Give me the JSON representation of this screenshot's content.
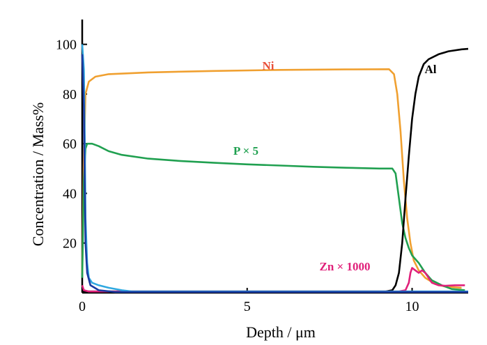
{
  "chart_data": {
    "type": "line",
    "title": "",
    "xlabel": "Depth /  μm",
    "ylabel": "Concentration / Mass%",
    "xlim": [
      0,
      11.7
    ],
    "ylim": [
      0,
      110
    ],
    "x_ticks": [
      0,
      5,
      10
    ],
    "y_ticks": [
      20,
      40,
      60,
      80,
      100
    ],
    "grid": false,
    "series": [
      {
        "name": "Ni",
        "color": "#f0a030",
        "points": [
          [
            0,
            8
          ],
          [
            0.05,
            55
          ],
          [
            0.1,
            80
          ],
          [
            0.2,
            85
          ],
          [
            0.4,
            87
          ],
          [
            0.8,
            88
          ],
          [
            2,
            88.7
          ],
          [
            4,
            89.3
          ],
          [
            6,
            89.7
          ],
          [
            8,
            89.9
          ],
          [
            9.3,
            90
          ],
          [
            9.45,
            88
          ],
          [
            9.55,
            80
          ],
          [
            9.65,
            65
          ],
          [
            9.75,
            45
          ],
          [
            9.85,
            30
          ],
          [
            9.95,
            20
          ],
          [
            10.05,
            13
          ],
          [
            10.2,
            9
          ],
          [
            10.4,
            6
          ],
          [
            10.7,
            3.5
          ],
          [
            11,
            2.5
          ],
          [
            11.5,
            2
          ]
        ]
      },
      {
        "name": "P × 5",
        "color": "#20a050",
        "points": [
          [
            0,
            6
          ],
          [
            0.05,
            45
          ],
          [
            0.1,
            58
          ],
          [
            0.15,
            60
          ],
          [
            0.3,
            60
          ],
          [
            0.5,
            59
          ],
          [
            0.8,
            57
          ],
          [
            1.2,
            55.5
          ],
          [
            2,
            54
          ],
          [
            3,
            53
          ],
          [
            4,
            52.3
          ],
          [
            5,
            51.7
          ],
          [
            6,
            51.2
          ],
          [
            7,
            50.7
          ],
          [
            8,
            50.3
          ],
          [
            9,
            50
          ],
          [
            9.4,
            50
          ],
          [
            9.5,
            48
          ],
          [
            9.6,
            38
          ],
          [
            9.7,
            28
          ],
          [
            9.8,
            22
          ],
          [
            9.9,
            18
          ],
          [
            10,
            15
          ],
          [
            10.2,
            12
          ],
          [
            10.4,
            8
          ],
          [
            10.6,
            5
          ],
          [
            10.9,
            3
          ],
          [
            11.2,
            1.5
          ],
          [
            11.6,
            1
          ]
        ]
      },
      {
        "name": "Al",
        "color": "#000000",
        "points": [
          [
            0,
            0.5
          ],
          [
            9.2,
            0.5
          ],
          [
            9.4,
            1
          ],
          [
            9.5,
            3
          ],
          [
            9.6,
            8
          ],
          [
            9.7,
            20
          ],
          [
            9.8,
            38
          ],
          [
            9.9,
            55
          ],
          [
            10,
            70
          ],
          [
            10.1,
            80
          ],
          [
            10.2,
            87
          ],
          [
            10.35,
            92
          ],
          [
            10.5,
            94
          ],
          [
            10.8,
            96
          ],
          [
            11.1,
            97.2
          ],
          [
            11.5,
            98
          ],
          [
            11.7,
            98.2
          ]
        ]
      },
      {
        "name": "Zn × 1000",
        "color": "#e0207a",
        "points": [
          [
            0,
            3
          ],
          [
            0.05,
            1
          ],
          [
            0.2,
            0.5
          ],
          [
            2,
            0.5
          ],
          [
            6,
            0.5
          ],
          [
            9.6,
            0.5
          ],
          [
            9.8,
            1
          ],
          [
            9.9,
            4
          ],
          [
            9.95,
            8
          ],
          [
            10,
            10
          ],
          [
            10.1,
            9
          ],
          [
            10.2,
            8
          ],
          [
            10.3,
            9
          ],
          [
            10.4,
            8
          ],
          [
            10.5,
            6
          ],
          [
            10.6,
            4
          ],
          [
            10.8,
            3
          ],
          [
            11,
            2.8
          ],
          [
            11.3,
            3
          ],
          [
            11.6,
            3
          ]
        ]
      },
      {
        "name": "",
        "color": "#30a8e0",
        "points": [
          [
            0,
            100
          ],
          [
            0.05,
            90
          ],
          [
            0.08,
            60
          ],
          [
            0.1,
            30
          ],
          [
            0.15,
            12
          ],
          [
            0.2,
            6
          ],
          [
            0.3,
            4
          ],
          [
            0.5,
            3
          ],
          [
            0.8,
            2
          ],
          [
            1.2,
            1
          ],
          [
            1.5,
            0.5
          ],
          [
            11.7,
            0.5
          ]
        ]
      },
      {
        "name": "",
        "color": "#1a3aa0",
        "points": [
          [
            0,
            96
          ],
          [
            0.05,
            75
          ],
          [
            0.08,
            40
          ],
          [
            0.1,
            20
          ],
          [
            0.15,
            8
          ],
          [
            0.25,
            3
          ],
          [
            0.5,
            1
          ],
          [
            1,
            0.3
          ],
          [
            11.7,
            0.3
          ]
        ]
      }
    ]
  }
}
